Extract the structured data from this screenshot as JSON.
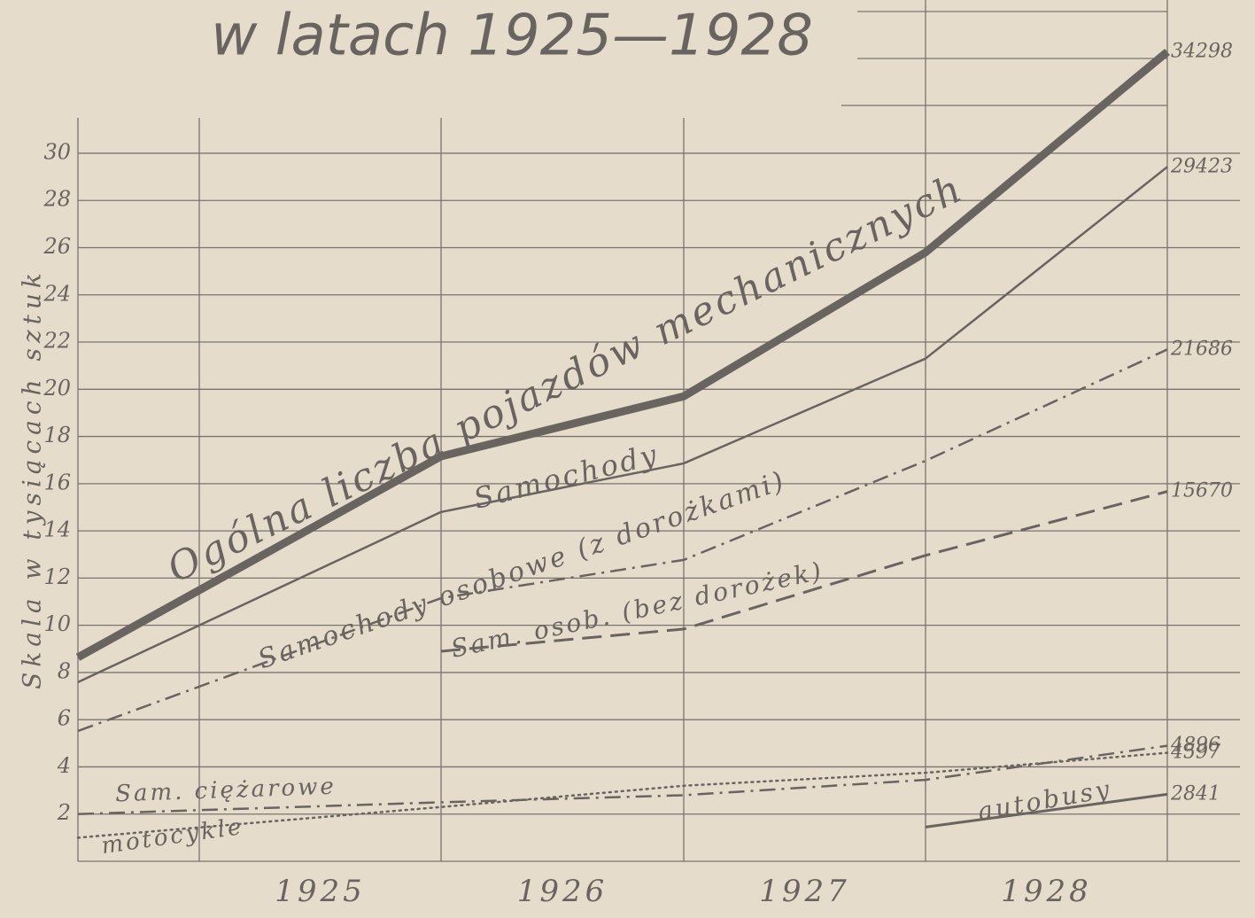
{
  "chart_data": {
    "type": "line",
    "title": "w latach 1925—1928",
    "ylabel": "Skala w tysiącach sztuk",
    "categories": [
      null,
      "1925",
      "1926",
      "1927",
      "1928"
    ],
    "ylim": [
      0,
      31.5
    ],
    "yticks": [
      2,
      4,
      6,
      8,
      10,
      12,
      14,
      16,
      18,
      20,
      22,
      24,
      26,
      28,
      30
    ],
    "grid": true,
    "series": [
      {
        "name": "Ogólna liczba pojazdów mechanicznych",
        "color": "#6a6460",
        "style": "solid",
        "width": 9,
        "values": [
          8.64,
          17.16,
          19.7,
          25.8,
          34.298
        ],
        "value_labels": [
          null,
          null,
          null,
          null,
          "34298"
        ]
      },
      {
        "name": "Samochody",
        "color": "#6a6460",
        "style": "solid",
        "width": 2.5,
        "values": [
          7.59,
          14.8,
          16.86,
          21.3,
          29.423
        ],
        "value_labels": [
          null,
          null,
          null,
          null,
          "29423"
        ]
      },
      {
        "name": "Samochody osobowe (z dorożkami)",
        "color": "#6a6460",
        "style": "dashdot",
        "width": 2.5,
        "values": [
          5.52,
          11.15,
          12.77,
          16.97,
          21.686
        ],
        "value_labels": [
          null,
          null,
          null,
          null,
          "21686"
        ]
      },
      {
        "name": "Sam. osob. (bez dorożek)",
        "color": "#6a6460",
        "style": "dashed",
        "width": 3,
        "values": [
          null,
          8.9,
          9.84,
          12.96,
          15.67
        ],
        "value_labels": [
          null,
          null,
          null,
          null,
          "15670"
        ]
      },
      {
        "name": "Sam. ciężarowe",
        "color": "#6a6460",
        "style": "dashdot",
        "width": 2.5,
        "values": [
          2.0,
          2.5,
          2.8,
          3.45,
          4.896
        ],
        "value_labels": [
          null,
          null,
          null,
          null,
          "4896"
        ]
      },
      {
        "name": "motocykle",
        "color": "#6a6460",
        "style": "dotted",
        "width": 2.5,
        "values": [
          1.0,
          2.3,
          3.2,
          3.75,
          4.597
        ],
        "value_labels": [
          null,
          null,
          null,
          null,
          "4597"
        ]
      },
      {
        "name": "autobusy",
        "color": "#6a6460",
        "style": "solid",
        "width": 3,
        "values": [
          null,
          null,
          null,
          1.45,
          2.841
        ],
        "value_labels": [
          null,
          null,
          null,
          null,
          "2841"
        ]
      }
    ]
  }
}
